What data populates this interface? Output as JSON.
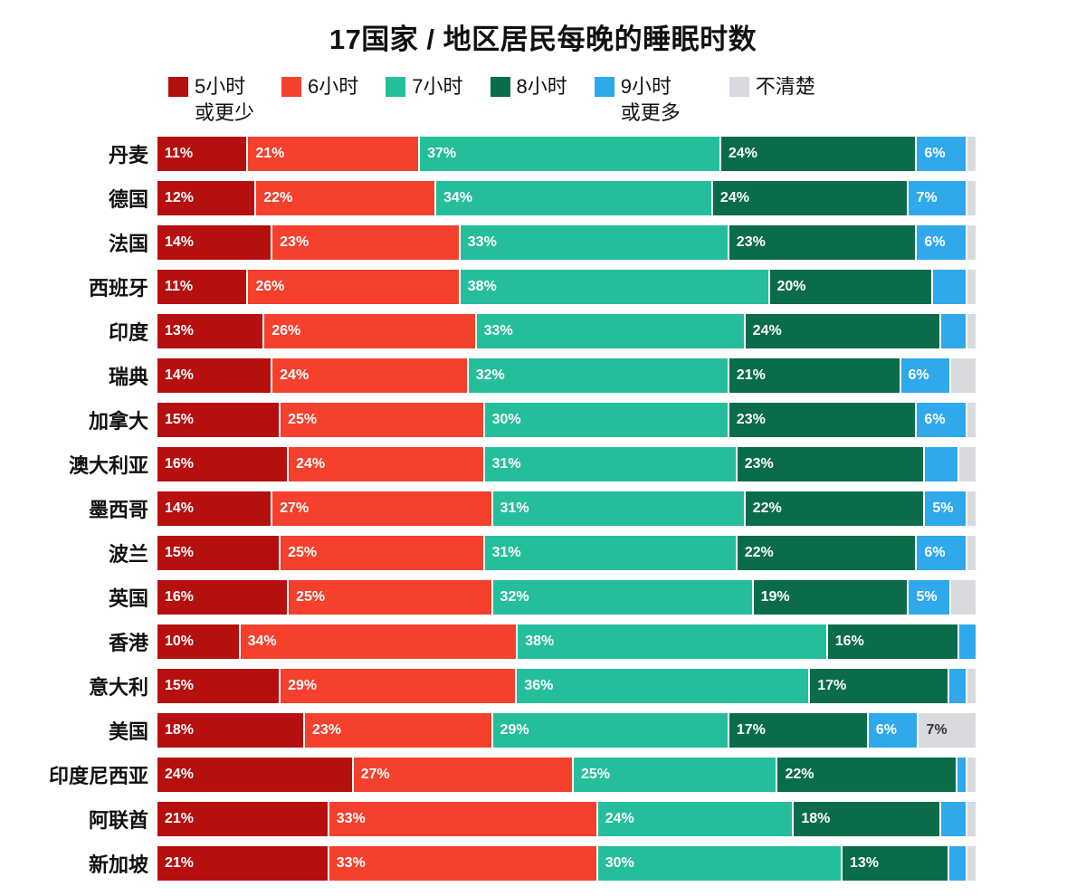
{
  "title": "17国家 / 地区居民每晚的睡眠时数",
  "legend": [
    {
      "label": "5小时",
      "sublabel": "或更少",
      "color": "#b60f0f"
    },
    {
      "label": "6小时",
      "sublabel": "",
      "color": "#f4402c"
    },
    {
      "label": "7小时",
      "sublabel": "",
      "color": "#25be9b"
    },
    {
      "label": "8小时",
      "sublabel": "",
      "color": "#0a6c49"
    },
    {
      "label": "9小时",
      "sublabel": "或更多",
      "color": "#2fa8ec"
    },
    {
      "label": "不清楚",
      "sublabel": "",
      "color": "#d9dae0"
    }
  ],
  "chart_data": {
    "type": "bar",
    "stacked": true,
    "orientation": "horizontal",
    "unit": "%",
    "label_threshold": 5,
    "title": "17国家 / 地区居民每晚的睡眠时数",
    "categories": [
      "丹麦",
      "德国",
      "法国",
      "西班牙",
      "印度",
      "瑞典",
      "加拿大",
      "澳大利亚",
      "墨西哥",
      "波兰",
      "英国",
      "香港",
      "意大利",
      "美国",
      "印度尼西亚",
      "阿联酋",
      "新加坡"
    ],
    "series": [
      {
        "name": "5小时或更少",
        "color": "#b60f0f",
        "label_color": "#ffffff",
        "values": [
          11,
          12,
          14,
          11,
          13,
          14,
          15,
          16,
          14,
          15,
          16,
          10,
          15,
          18,
          24,
          21,
          21
        ]
      },
      {
        "name": "6小时",
        "color": "#f4402c",
        "label_color": "#ffffff",
        "values": [
          21,
          22,
          23,
          26,
          26,
          24,
          25,
          24,
          27,
          25,
          25,
          34,
          29,
          23,
          27,
          33,
          33
        ]
      },
      {
        "name": "7小时",
        "color": "#25be9b",
        "label_color": "#ffffff",
        "values": [
          37,
          34,
          33,
          38,
          33,
          32,
          30,
          31,
          31,
          31,
          32,
          38,
          36,
          29,
          25,
          24,
          30
        ]
      },
      {
        "name": "8小时",
        "color": "#0a6c49",
        "label_color": "#ffffff",
        "values": [
          24,
          24,
          23,
          20,
          24,
          21,
          23,
          23,
          22,
          22,
          19,
          16,
          17,
          17,
          22,
          18,
          13
        ]
      },
      {
        "name": "9小时或更多",
        "color": "#2fa8ec",
        "label_color": "#ffffff",
        "values": [
          6,
          7,
          6,
          4,
          3,
          6,
          6,
          4,
          5,
          6,
          5,
          2,
          2,
          6,
          1,
          3,
          2
        ]
      },
      {
        "name": "不清楚",
        "color": "#d9dae0",
        "label_color": "#333333",
        "values": [
          1,
          1,
          1,
          1,
          1,
          3,
          1,
          2,
          1,
          1,
          3,
          0,
          1,
          7,
          1,
          1,
          1
        ]
      }
    ]
  }
}
